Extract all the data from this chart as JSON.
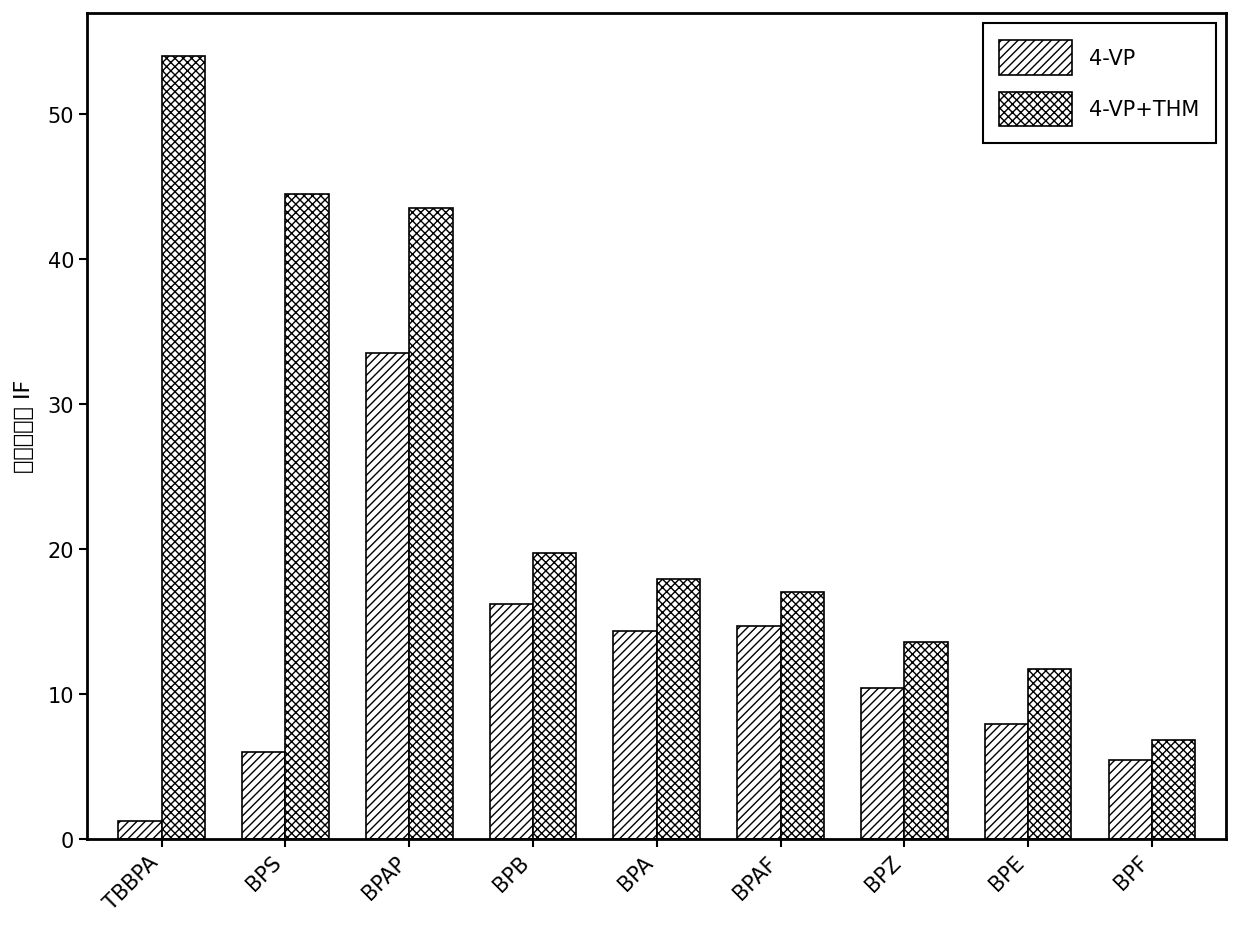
{
  "categories": [
    "TBBPA",
    "BPS",
    "BPAP",
    "BPB",
    "BPA",
    "BPAF",
    "BPZ",
    "BPE",
    "BPF"
  ],
  "values_4vp": [
    1.2,
    6.0,
    33.5,
    16.2,
    14.3,
    14.7,
    10.4,
    7.9,
    5.4
  ],
  "values_4vp_thm": [
    54.0,
    44.5,
    43.5,
    19.7,
    17.9,
    17.0,
    13.6,
    11.7,
    6.8
  ],
  "ylabel": "印迹因子， IF",
  "ylim": [
    0,
    57
  ],
  "yticks": [
    0,
    10,
    20,
    30,
    40,
    50
  ],
  "legend_labels": [
    "4-VP",
    "4-VP+THM"
  ],
  "bar_width": 0.35,
  "hatch_4vp": "////",
  "hatch_4vp_thm": "xxxx",
  "facecolor": "white",
  "edgecolor": "black",
  "fontsize_ticks": 15,
  "fontsize_ylabel": 16,
  "fontsize_legend": 15,
  "background_color": "#ffffff"
}
